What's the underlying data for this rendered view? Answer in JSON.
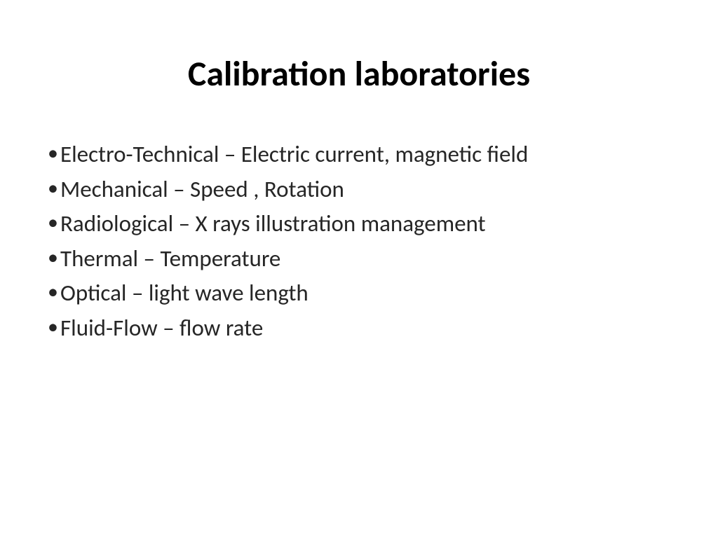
{
  "slide": {
    "title": "Calibration laboratories",
    "bullets": [
      "Electro-Technical – Electric current, magnetic field",
      "Mechanical – Speed , Rotation",
      "Radiological – X rays illustration management",
      "Thermal – Temperature",
      "Optical – light wave length",
      "Fluid-Flow – flow rate"
    ],
    "styling": {
      "background_color": "#ffffff",
      "text_color": "#000000",
      "body_text_color": "#262626",
      "title_fontsize": 50,
      "title_weight": "bold",
      "bullet_fontsize": 33,
      "font_family": "Calibri"
    }
  }
}
